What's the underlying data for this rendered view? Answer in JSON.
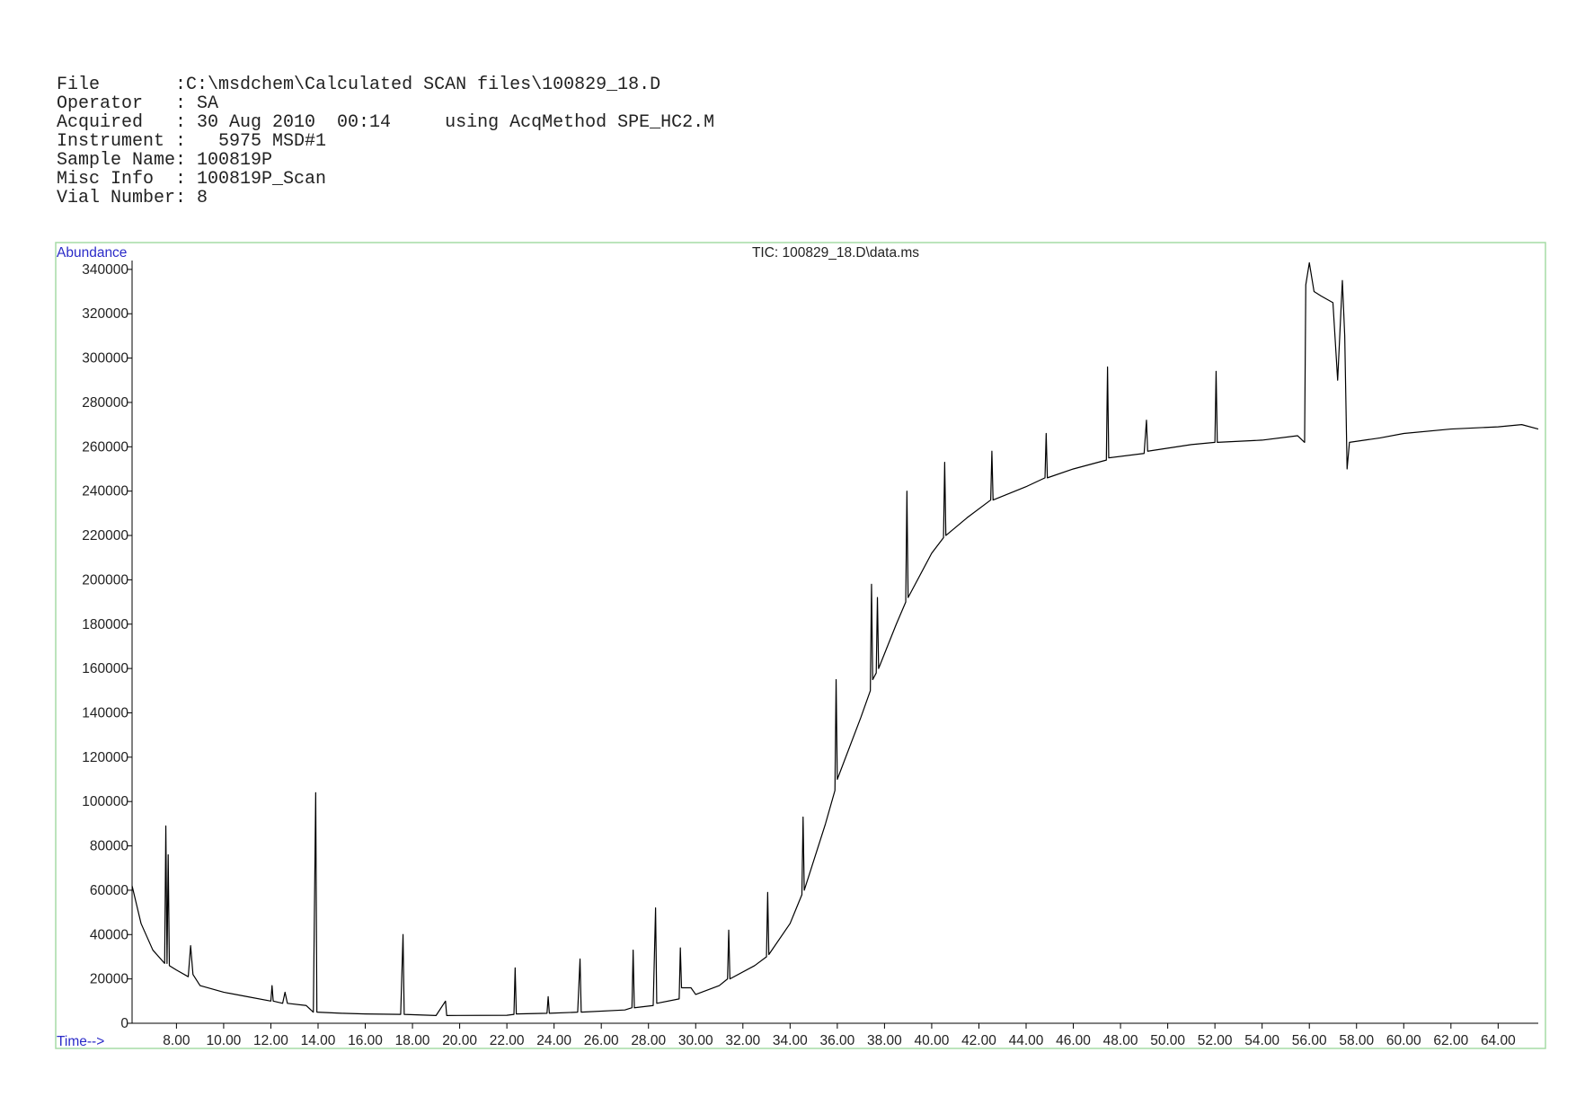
{
  "header": {
    "lines": [
      "File       :C:\\msdchem\\Calculated SCAN files\\100829_18.D",
      "Operator   : SA",
      "Acquired   : 30 Aug 2010  00:14     using AcqMethod SPE_HC2.M",
      "Instrument :   5975 MSD#1",
      "Sample Name: 100819P",
      "Misc Info  : 100819P_Scan",
      "Vial Number: 8"
    ]
  },
  "chart_data": {
    "type": "line",
    "title": "TIC: 100829_18.D\\data.ms",
    "y_label": "Abundance",
    "x_label": "Time-->",
    "xlim": [
      6.12,
      65.7
    ],
    "ylim": [
      0,
      344000
    ],
    "xticks": [
      {
        "value": 8,
        "label": "8.00"
      },
      {
        "value": 10,
        "label": "10.00"
      },
      {
        "value": 12,
        "label": "12.00"
      },
      {
        "value": 14,
        "label": "14.00"
      },
      {
        "value": 16,
        "label": "16.00"
      },
      {
        "value": 18,
        "label": "18.00"
      },
      {
        "value": 20,
        "label": "20.00"
      },
      {
        "value": 22,
        "label": "22.00"
      },
      {
        "value": 24,
        "label": "24.00"
      },
      {
        "value": 26,
        "label": "26.00"
      },
      {
        "value": 28,
        "label": "28.00"
      },
      {
        "value": 30,
        "label": "30.00"
      },
      {
        "value": 32,
        "label": "32.00"
      },
      {
        "value": 34,
        "label": "34.00"
      },
      {
        "value": 36,
        "label": "36.00"
      },
      {
        "value": 38,
        "label": "38.00"
      },
      {
        "value": 40,
        "label": "40.00"
      },
      {
        "value": 42,
        "label": "42.00"
      },
      {
        "value": 44,
        "label": "44.00"
      },
      {
        "value": 46,
        "label": "46.00"
      },
      {
        "value": 48,
        "label": "48.00"
      },
      {
        "value": 50,
        "label": "50.00"
      },
      {
        "value": 52,
        "label": "52.00"
      },
      {
        "value": 54,
        "label": "54.00"
      },
      {
        "value": 56,
        "label": "56.00"
      },
      {
        "value": 58,
        "label": "58.00"
      },
      {
        "value": 60,
        "label": "60.00"
      },
      {
        "value": 62,
        "label": "62.00"
      },
      {
        "value": 64,
        "label": "64.00"
      }
    ],
    "yticks": [
      0,
      20000,
      40000,
      60000,
      80000,
      100000,
      120000,
      140000,
      160000,
      180000,
      200000,
      220000,
      240000,
      260000,
      280000,
      300000,
      320000,
      340000
    ],
    "grid": false,
    "series": [
      {
        "color": "#000000",
        "x": [
          6.12,
          6.5,
          7.0,
          7.5,
          7.55,
          7.6,
          7.65,
          7.7,
          8.0,
          8.5,
          8.6,
          8.7,
          9.0,
          10.0,
          11.0,
          12.0,
          12.05,
          12.1,
          12.5,
          12.6,
          12.7,
          13.5,
          13.8,
          13.9,
          13.95,
          15.0,
          16.0,
          17.5,
          17.6,
          17.65,
          19.0,
          19.4,
          19.45,
          22.0,
          22.3,
          22.35,
          22.4,
          23.7,
          23.75,
          23.8,
          25.0,
          25.1,
          25.15,
          27.0,
          27.3,
          27.35,
          27.4,
          28.2,
          28.3,
          28.35,
          29.3,
          29.35,
          29.4,
          29.8,
          30.0,
          31.0,
          31.35,
          31.4,
          31.45,
          32.5,
          33.0,
          33.05,
          33.1,
          34.0,
          34.5,
          34.55,
          34.6,
          35.5,
          35.9,
          35.95,
          36.0,
          37.0,
          37.4,
          37.45,
          37.5,
          37.65,
          37.7,
          37.75,
          38.5,
          38.9,
          38.95,
          39.0,
          40.0,
          40.5,
          40.55,
          40.6,
          41.5,
          42.5,
          42.55,
          42.6,
          44.0,
          44.8,
          44.85,
          44.9,
          46.0,
          47.4,
          47.45,
          47.5,
          49.0,
          49.1,
          49.15,
          51.0,
          52.0,
          52.05,
          52.1,
          54.0,
          55.5,
          55.8,
          55.85,
          56.0,
          56.2,
          56.5,
          57.0,
          57.2,
          57.4,
          57.5,
          57.6,
          57.7,
          59.0,
          60.0,
          62.0,
          64.0,
          65.0,
          65.7
        ],
        "values": [
          62000,
          45000,
          33000,
          27000,
          89000,
          27000,
          76000,
          26000,
          24000,
          21000,
          35000,
          22000,
          17000,
          14000,
          12000,
          10000,
          17000,
          10000,
          9000,
          14000,
          9000,
          8000,
          5000,
          104000,
          5000,
          4500,
          4200,
          4000,
          40000,
          4000,
          3500,
          10000,
          3500,
          3600,
          4000,
          25000,
          4200,
          4500,
          12000,
          4500,
          5000,
          29000,
          5000,
          6000,
          7000,
          33000,
          7000,
          8000,
          52000,
          9000,
          11000,
          34000,
          16000,
          16000,
          13000,
          17000,
          20000,
          42000,
          20000,
          26000,
          30000,
          59000,
          31000,
          45000,
          58000,
          93000,
          60000,
          90000,
          105000,
          155000,
          110000,
          138000,
          150000,
          198000,
          155000,
          158000,
          192000,
          160000,
          180000,
          190000,
          240000,
          192000,
          212000,
          219000,
          253000,
          220000,
          228000,
          236000,
          258000,
          236000,
          242000,
          246000,
          266000,
          246000,
          250000,
          254000,
          296000,
          255000,
          257000,
          272000,
          258000,
          261000,
          262000,
          294000,
          262000,
          263000,
          265000,
          262000,
          333000,
          343000,
          330000,
          328000,
          325000,
          290000,
          335000,
          310000,
          250000,
          262000,
          264000,
          266000,
          268000,
          269000,
          270000,
          268000
        ]
      }
    ]
  }
}
